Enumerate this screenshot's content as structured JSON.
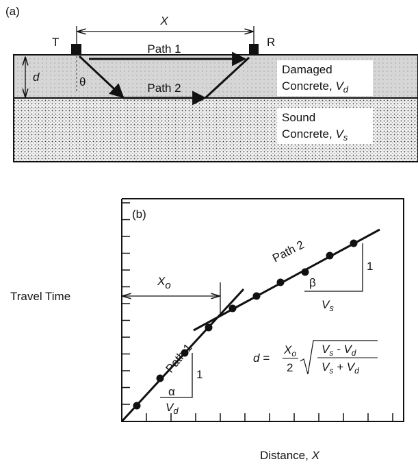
{
  "panel_a": {
    "label": "(a)",
    "distance": "X",
    "transmitter": "T",
    "receiver": "R",
    "path1": "Path 1",
    "path2": "Path 2",
    "depth": "d",
    "angle": "θ",
    "damaged": {
      "line1": "Damaged",
      "line2": "Concrete, ",
      "var": "V",
      "sub": "d"
    },
    "sound": {
      "line1": "Sound",
      "line2": "Concrete, ",
      "var": "V",
      "sub": "s"
    }
  },
  "panel_b": {
    "label": "(b)",
    "y_label": "Travel Time",
    "x_label": "Distance, ",
    "x_var": "X",
    "crossover": {
      "var": "X",
      "sub": "o"
    },
    "path1": "Path 1",
    "path2": "Path 2",
    "slope1": {
      "angle": "α",
      "rise": "1",
      "var": "V",
      "sub": "d"
    },
    "slope2": {
      "angle": "β",
      "rise": "1",
      "var": "V",
      "sub": "s"
    },
    "formula": {
      "lhs": "d =",
      "num_var": "X",
      "num_sub": "o",
      "den": "2",
      "top": [
        "V",
        "s",
        " - V",
        "d"
      ],
      "bottom": [
        "V",
        "s",
        " + V",
        "d"
      ]
    }
  }
}
